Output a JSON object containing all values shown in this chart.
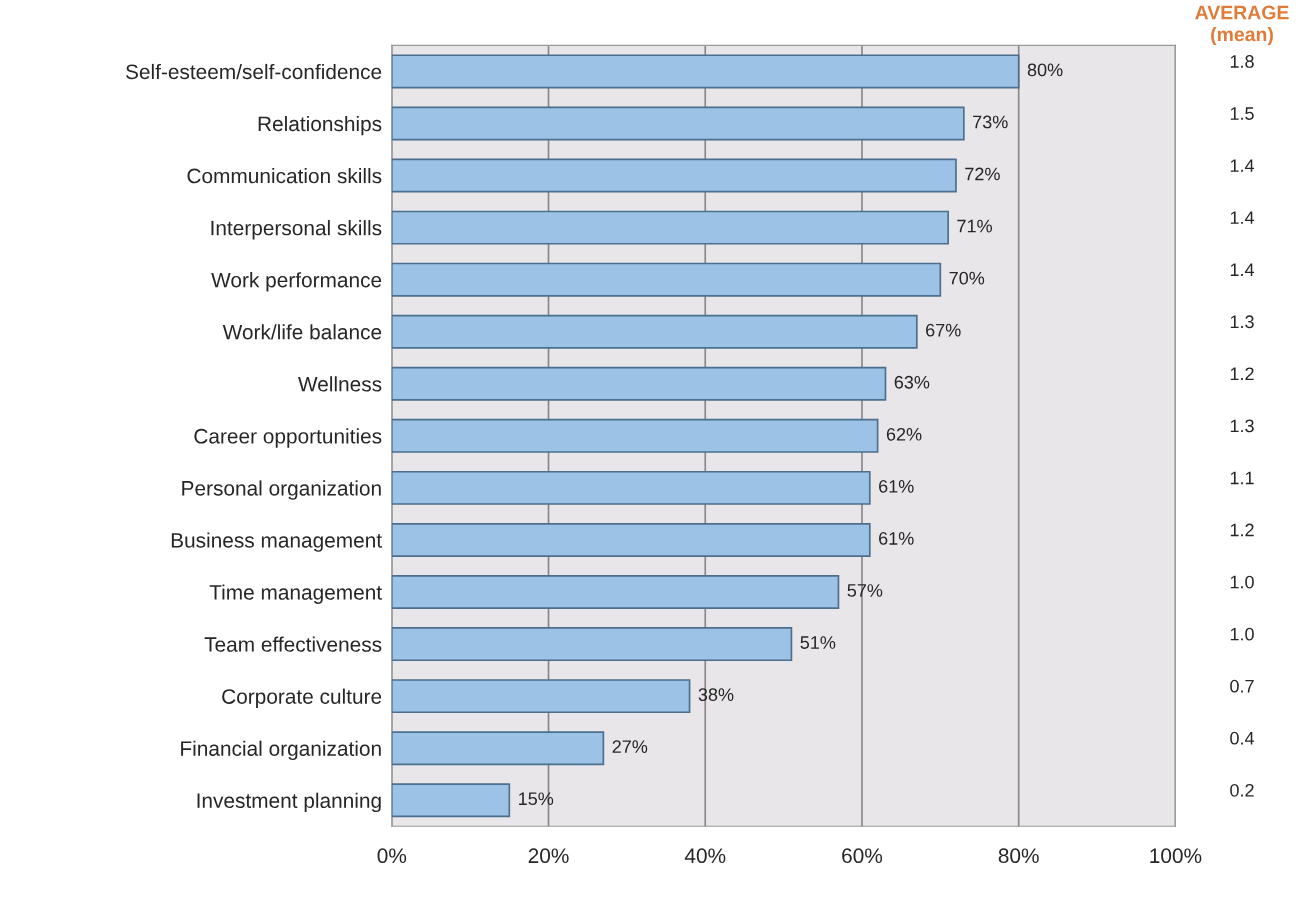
{
  "chart_data": {
    "type": "bar",
    "orientation": "horizontal",
    "categories": [
      "Self-esteem/self-confidence",
      "Relationships",
      "Communication skills",
      "Interpersonal skills",
      "Work performance",
      "Work/life balance",
      "Wellness",
      "Career opportunities",
      "Personal organization",
      "Business management",
      "Time management",
      "Team effectiveness",
      "Corporate culture",
      "Financial organization",
      "Investment planning"
    ],
    "values": [
      80,
      73,
      72,
      71,
      70,
      67,
      63,
      62,
      61,
      61,
      57,
      51,
      38,
      27,
      15
    ],
    "color": "#9cc2e5",
    "value_labels": [
      "80%",
      "73%",
      "72%",
      "71%",
      "70%",
      "67%",
      "63%",
      "62%",
      "61%",
      "61%",
      "57%",
      "51%",
      "38%",
      "27%",
      "15%"
    ],
    "xlim": [
      0,
      100
    ],
    "xticks": [
      {
        "value": 0,
        "label": "0%"
      },
      {
        "value": 20,
        "label": "20%"
      },
      {
        "value": 40,
        "label": "40%"
      },
      {
        "value": 60,
        "label": "60%"
      },
      {
        "value": 80,
        "label": "80%"
      },
      {
        "value": 100,
        "label": "100%"
      }
    ],
    "grid": "x",
    "annotations": [
      "AVERAGE",
      "(mean)",
      "1.8",
      "1.5",
      "1.4",
      "1.4",
      "1.4",
      "1.3",
      "1.2",
      "1.3",
      "1.1",
      "1.2",
      "1.0",
      "1.0",
      "0.7",
      "0.4",
      "0.2"
    ]
  }
}
